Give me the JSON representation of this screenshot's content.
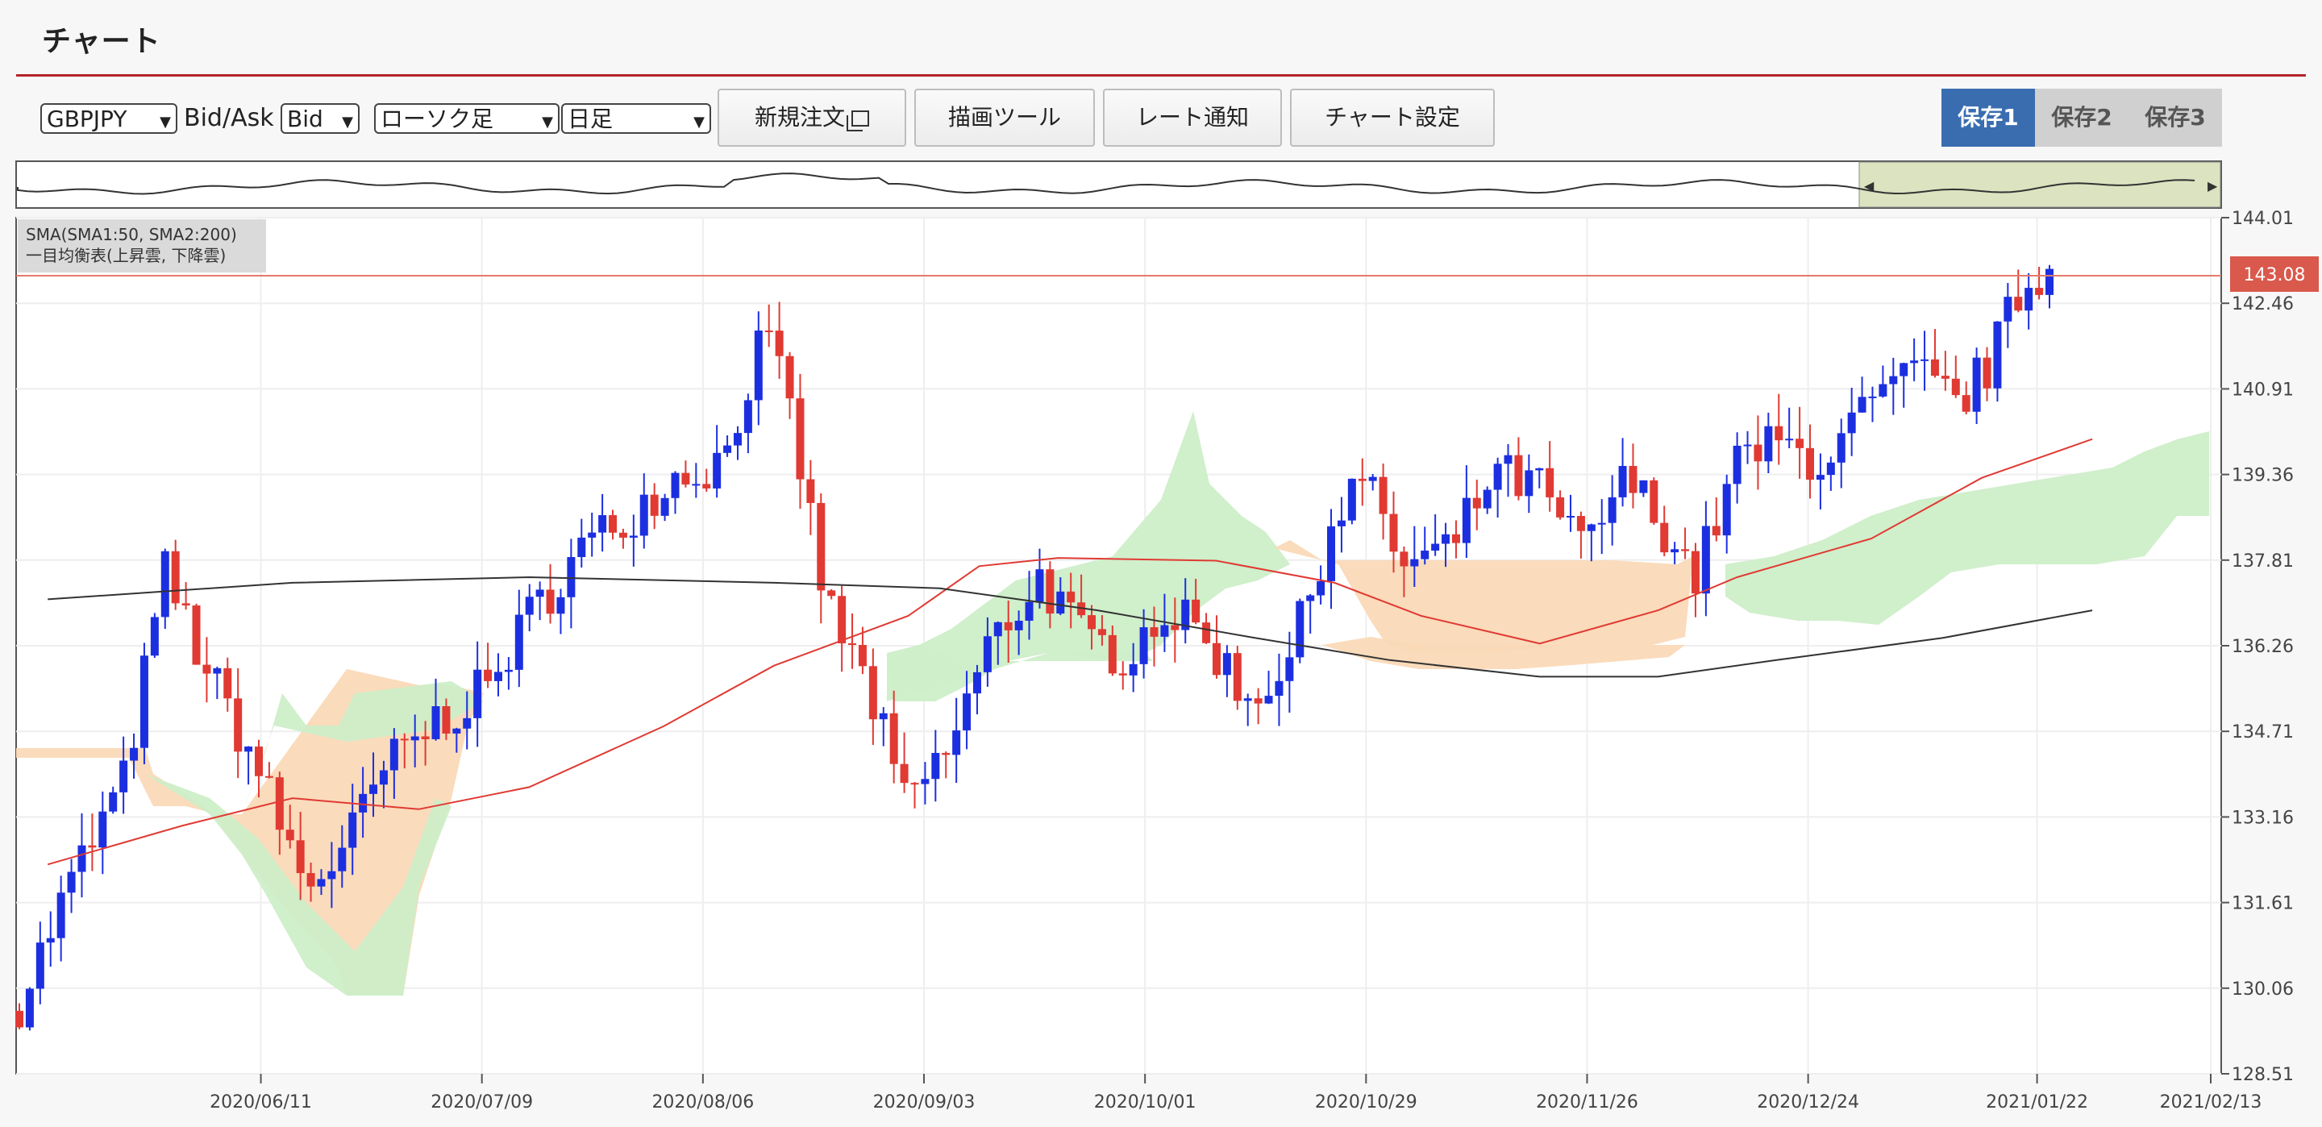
{
  "app": {
    "title": "チャート"
  },
  "toolbar": {
    "symbol": "GBPJPY",
    "price_type_label": "Bid/Ask",
    "price_type": "Bid",
    "chart_type": "ローソク足",
    "timeframe": "日足",
    "new_order": "新規注文",
    "drawing_tools": "描画ツール",
    "rate_alert": "レート通知",
    "chart_settings": "チャート設定"
  },
  "save_slots": [
    "保存1",
    "保存2",
    "保存3"
  ],
  "legend": {
    "line1": "SMA(SMA1:50, SMA2:200)",
    "line2": "一目均衡表(上昇雲, 下降雲)"
  },
  "current_price": "143.08",
  "colors": {
    "accent": "#b5232a",
    "up_candle": "#1c2fe0",
    "down_candle": "#e03a33",
    "sma50": "#e03a33",
    "sma200": "#333333",
    "cloud_up": "#cdeec8",
    "cloud_down": "#fad9b7",
    "price_tag": "#d9594c",
    "active_save": "#3a6db0"
  },
  "chart_data": {
    "type": "candlestick",
    "yticks": [
      "144.01",
      "142.46",
      "140.91",
      "139.36",
      "137.81",
      "136.26",
      "134.71",
      "133.16",
      "131.61",
      "130.06",
      "128.51"
    ],
    "xticks": [
      "2020/06/11",
      "2020/07/09",
      "2020/08/06",
      "2020/09/03",
      "2020/10/01",
      "2020/10/29",
      "2020/11/26",
      "2020/12/24",
      "2021/01/22",
      "2021/02/13"
    ],
    "ylim": [
      128.51,
      144.01
    ],
    "last_price": 143.08,
    "series": [
      {
        "name": "SMA1:50",
        "values": [
          [
            "2020/05/15",
            132.3
          ],
          [
            "2020/06/01",
            133.0
          ],
          [
            "2020/06/15",
            133.5
          ],
          [
            "2020/07/01",
            133.3
          ],
          [
            "2020/07/15",
            133.7
          ],
          [
            "2020/08/01",
            134.8
          ],
          [
            "2020/08/15",
            135.9
          ],
          [
            "2020/09/01",
            136.8
          ],
          [
            "2020/09/10",
            137.7
          ],
          [
            "2020/09/20",
            137.85
          ],
          [
            "2020/10/10",
            137.8
          ],
          [
            "2020/10/25",
            137.4
          ],
          [
            "2020/11/05",
            136.8
          ],
          [
            "2020/11/20",
            136.3
          ],
          [
            "2020/12/05",
            136.9
          ],
          [
            "2020/12/15",
            137.5
          ],
          [
            "2021/01/01",
            138.2
          ],
          [
            "2021/01/15",
            139.3
          ],
          [
            "2021/01/29",
            140.0
          ]
        ]
      },
      {
        "name": "SMA2:200",
        "values": [
          [
            "2020/05/15",
            137.1
          ],
          [
            "2020/06/15",
            137.4
          ],
          [
            "2020/07/15",
            137.5
          ],
          [
            "2020/08/15",
            137.4
          ],
          [
            "2020/09/05",
            137.3
          ],
          [
            "2020/09/25",
            136.9
          ],
          [
            "2020/10/15",
            136.4
          ],
          [
            "2020/11/01",
            136.0
          ],
          [
            "2020/11/20",
            135.7
          ],
          [
            "2020/12/05",
            135.7
          ],
          [
            "2020/12/20",
            136.0
          ],
          [
            "2021/01/10",
            136.4
          ],
          [
            "2021/01/29",
            136.9
          ]
        ]
      }
    ]
  }
}
